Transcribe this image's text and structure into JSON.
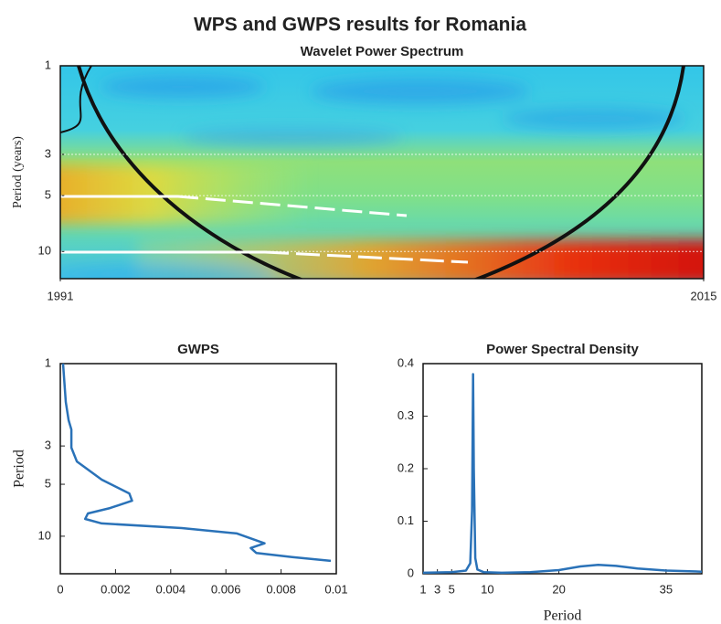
{
  "title": "WPS and GWPS results for Romania",
  "chart_data": [
    {
      "type": "heatmap",
      "title": "Wavelet Power Spectrum",
      "y_label": "Period (years)",
      "xlim": [
        1991,
        2015
      ],
      "xticks": [
        1991,
        2015
      ],
      "ylim": [
        1,
        14
      ],
      "yticks": [
        1,
        3,
        5,
        10
      ],
      "log_y": true,
      "y_inverted": true
    },
    {
      "type": "line",
      "title": "GWPS",
      "y_label": "Period",
      "color": "#2a72b8",
      "x": [
        0.0001,
        0.0002,
        0.0003,
        0.0004,
        0.0004,
        0.0006,
        0.0015,
        0.0025,
        0.0026,
        0.0018,
        0.001,
        0.0009,
        0.0015,
        0.0044,
        0.0064,
        0.0074,
        0.0069,
        0.0071,
        0.0084,
        0.0098
      ],
      "y": [
        1,
        1.67,
        2.13,
        2.41,
        3.07,
        3.69,
        4.7,
        5.65,
        6.23,
        6.87,
        7.38,
        7.94,
        8.43,
        8.97,
        9.64,
        11,
        11.7,
        12.5,
        13.2,
        13.9
      ],
      "xlim": [
        0,
        0.01
      ],
      "xticks": [
        0,
        0.002,
        0.004,
        0.006,
        0.008,
        0.01
      ],
      "ylim": [
        1,
        16.5
      ],
      "yticks": [
        1,
        3,
        5,
        10
      ],
      "log_y": true,
      "y_inverted": true
    },
    {
      "type": "line",
      "title": "Power Spectral Density",
      "x_label": "Period",
      "color": "#2a72b8",
      "x": [
        1,
        5,
        7,
        7.6,
        7.85,
        8.0,
        8.1,
        8.3,
        8.6,
        9.5,
        12,
        16,
        20,
        23,
        25.5,
        28,
        31,
        35,
        40
      ],
      "y": [
        0.002,
        0.003,
        0.006,
        0.02,
        0.12,
        0.38,
        0.2,
        0.03,
        0.008,
        0.003,
        0.002,
        0.003,
        0.007,
        0.014,
        0.017,
        0.015,
        0.01,
        0.006,
        0.004
      ],
      "xlim": [
        1,
        40
      ],
      "xticks": [
        1,
        3,
        5,
        10,
        20,
        35
      ],
      "ylim": [
        0,
        0.4
      ],
      "yticks": [
        0,
        0.1,
        0.2,
        0.3,
        0.4
      ]
    }
  ]
}
